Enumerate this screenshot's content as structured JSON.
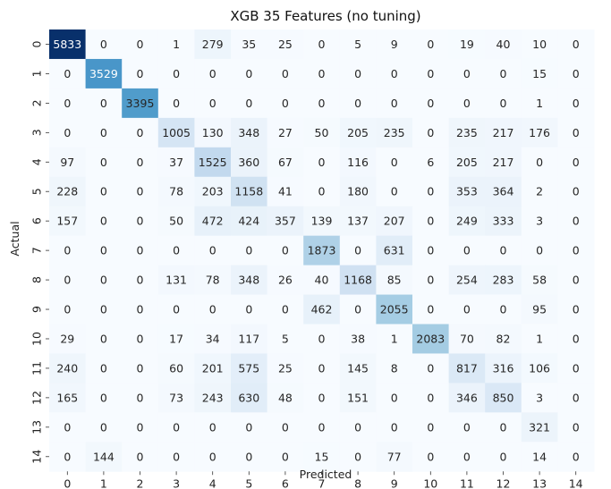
{
  "chart_data": {
    "type": "heatmap",
    "title": "XGB 35 Features (no tuning)",
    "xlabel": "Predicted",
    "ylabel": "Actual",
    "x_labels": [
      "0",
      "1",
      "2",
      "3",
      "4",
      "5",
      "6",
      "7",
      "8",
      "9",
      "10",
      "11",
      "12",
      "13",
      "14"
    ],
    "y_labels": [
      "0",
      "1",
      "2",
      "3",
      "4",
      "5",
      "6",
      "7",
      "8",
      "9",
      "10",
      "11",
      "12",
      "13",
      "14"
    ],
    "values": [
      [
        5833,
        0,
        0,
        1,
        279,
        35,
        25,
        0,
        5,
        9,
        0,
        19,
        40,
        10,
        0
      ],
      [
        0,
        3529,
        0,
        0,
        0,
        0,
        0,
        0,
        0,
        0,
        0,
        0,
        0,
        15,
        0
      ],
      [
        0,
        0,
        3395,
        0,
        0,
        0,
        0,
        0,
        0,
        0,
        0,
        0,
        0,
        1,
        0
      ],
      [
        0,
        0,
        0,
        1005,
        130,
        348,
        27,
        50,
        205,
        235,
        0,
        235,
        217,
        176,
        0
      ],
      [
        97,
        0,
        0,
        37,
        1525,
        360,
        67,
        0,
        116,
        0,
        6,
        205,
        217,
        0,
        0
      ],
      [
        228,
        0,
        0,
        78,
        203,
        1158,
        41,
        0,
        180,
        0,
        0,
        353,
        364,
        2,
        0
      ],
      [
        157,
        0,
        0,
        50,
        472,
        424,
        357,
        139,
        137,
        207,
        0,
        249,
        333,
        3,
        0
      ],
      [
        0,
        0,
        0,
        0,
        0,
        0,
        0,
        1873,
        0,
        631,
        0,
        0,
        0,
        0,
        0
      ],
      [
        0,
        0,
        0,
        131,
        78,
        348,
        26,
        40,
        1168,
        85,
        0,
        254,
        283,
        58,
        0
      ],
      [
        0,
        0,
        0,
        0,
        0,
        0,
        0,
        462,
        0,
        2055,
        0,
        0,
        0,
        95,
        0
      ],
      [
        29,
        0,
        0,
        17,
        34,
        117,
        5,
        0,
        38,
        1,
        2083,
        70,
        82,
        1,
        0
      ],
      [
        240,
        0,
        0,
        60,
        201,
        575,
        25,
        0,
        145,
        8,
        0,
        817,
        316,
        106,
        0
      ],
      [
        165,
        0,
        0,
        73,
        243,
        630,
        48,
        0,
        151,
        0,
        0,
        346,
        850,
        3,
        0
      ],
      [
        0,
        0,
        0,
        0,
        0,
        0,
        0,
        0,
        0,
        0,
        0,
        0,
        0,
        321,
        0
      ],
      [
        0,
        144,
        0,
        0,
        0,
        0,
        0,
        15,
        0,
        77,
        0,
        0,
        0,
        14,
        0
      ]
    ],
    "colormap": "Blues",
    "color_low": "#f7fbff",
    "color_high": "#08306b",
    "colorbar": false,
    "annotated": true
  }
}
